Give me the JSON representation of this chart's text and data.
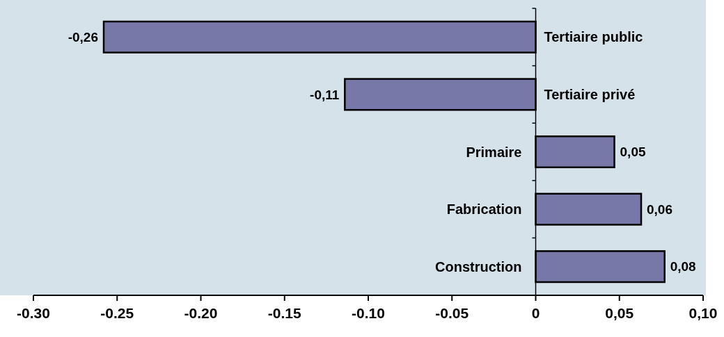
{
  "chart_data": {
    "type": "bar",
    "orientation": "horizontal",
    "categories": [
      "Tertiaire public",
      "Tertiaire privé",
      "Primaire",
      "Fabrication",
      "Construction"
    ],
    "values": [
      -0.258,
      -0.114,
      0.047,
      0.063,
      0.077
    ],
    "value_labels": [
      "-0,26",
      "-0,11",
      "0,05",
      "0,06",
      "0,08"
    ],
    "color": "#7878a8",
    "xlim": [
      -0.3,
      0.1
    ],
    "xticks": [
      {
        "value": -0.3,
        "label": "-0.30"
      },
      {
        "value": -0.25,
        "label": "-0.25"
      },
      {
        "value": -0.2,
        "label": "-0.20"
      },
      {
        "value": -0.15,
        "label": "-0.15"
      },
      {
        "value": -0.1,
        "label": "-0.10"
      },
      {
        "value": -0.05,
        "label": "-0.05"
      },
      0,
      {
        "value": 0.05,
        "label": "0,05"
      },
      {
        "value": 0.1,
        "label": "0,10"
      }
    ],
    "grid": false
  }
}
